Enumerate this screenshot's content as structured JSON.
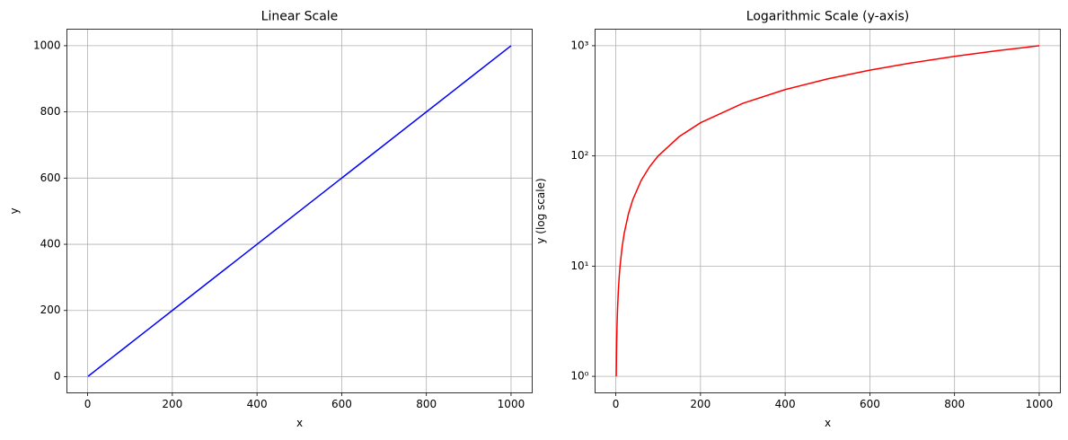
{
  "chart_data": [
    {
      "type": "line",
      "title": "Linear Scale",
      "xlabel": "x",
      "ylabel": "y",
      "yscale": "linear",
      "grid": true,
      "x": [
        1,
        1.5,
        2,
        3,
        4,
        6,
        8,
        10,
        15,
        20,
        30,
        40,
        60,
        80,
        100,
        150,
        200,
        300,
        400,
        500,
        600,
        700,
        800,
        900,
        1000
      ],
      "series": [
        {
          "color": "#0000ff",
          "values": [
            1,
            1.5,
            2,
            3,
            4,
            6,
            8,
            10,
            15,
            20,
            30,
            40,
            60,
            80,
            100,
            150,
            200,
            300,
            400,
            500,
            600,
            700,
            800,
            900,
            1000
          ]
        }
      ],
      "xlim": [
        -48.95,
        1049.95
      ],
      "xticks": [
        0,
        200,
        400,
        600,
        800,
        1000
      ],
      "ylim": [
        -48.95,
        1049.95
      ],
      "yticks": [
        0,
        200,
        400,
        600,
        800,
        1000
      ]
    },
    {
      "type": "line",
      "title": "Logarithmic Scale (y-axis)",
      "xlabel": "x",
      "ylabel": "y (log scale)",
      "yscale": "log",
      "grid": true,
      "x": [
        1,
        1.5,
        2,
        3,
        4,
        6,
        8,
        10,
        15,
        20,
        30,
        40,
        60,
        80,
        100,
        150,
        200,
        300,
        400,
        500,
        600,
        700,
        800,
        900,
        1000
      ],
      "series": [
        {
          "color": "#ff0000",
          "values": [
            1,
            1.5,
            2,
            3,
            4,
            6,
            8,
            10,
            15,
            20,
            30,
            40,
            60,
            80,
            100,
            150,
            200,
            300,
            400,
            500,
            600,
            700,
            800,
            900,
            1000
          ]
        }
      ],
      "xlim": [
        -48.95,
        1049.95
      ],
      "xticks": [
        0,
        200,
        400,
        600,
        800,
        1000
      ],
      "ylim": [
        0.708,
        1412.5
      ],
      "yticks": [
        {
          "value": 1,
          "label": "10⁰"
        },
        {
          "value": 10,
          "label": "10¹"
        },
        {
          "value": 100,
          "label": "10²"
        },
        {
          "value": 1000,
          "label": "10³"
        }
      ]
    }
  ]
}
